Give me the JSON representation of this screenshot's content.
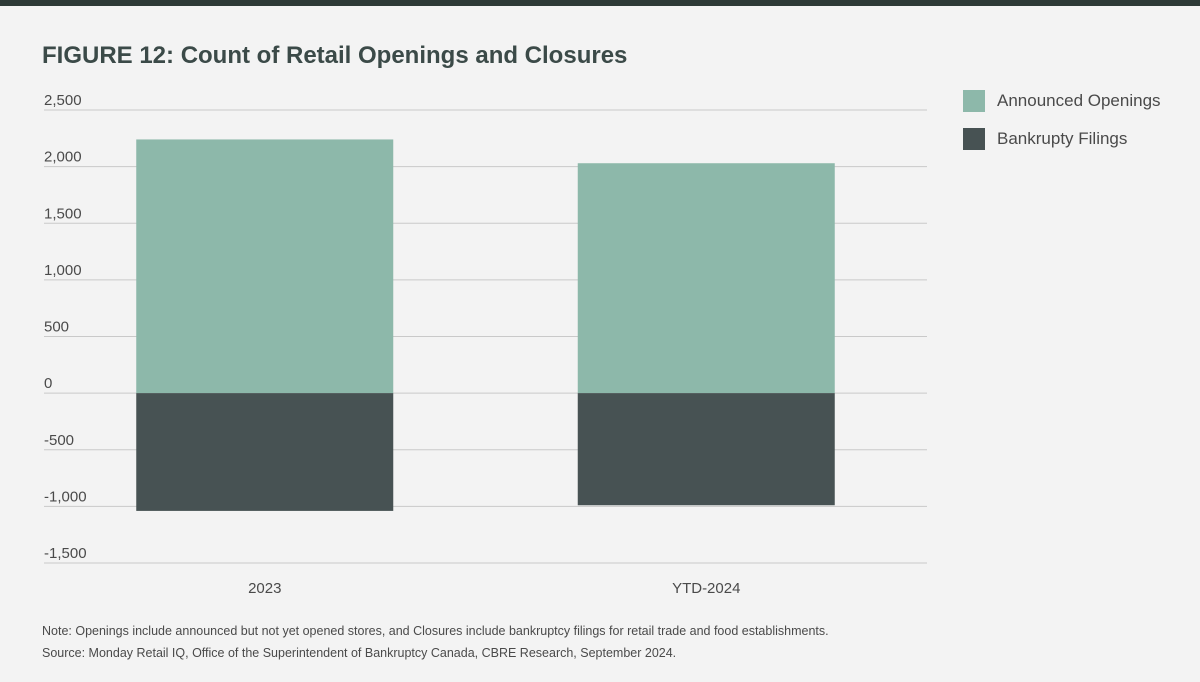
{
  "title": "FIGURE 12: Count of Retail Openings and Closures",
  "colors": {
    "openings": "#8db8aa",
    "bankruptcy": "#475253",
    "grid": "#c9c9c9",
    "tick_text": "#4a4a4a"
  },
  "legend": [
    {
      "label": "Announced Openings",
      "color": "#8db8aa"
    },
    {
      "label": "Bankrupty Filings",
      "color": "#475253"
    }
  ],
  "chart_data": {
    "type": "bar",
    "stacked": true,
    "categories": [
      "2023",
      "YTD-2024"
    ],
    "series": [
      {
        "name": "Announced Openings",
        "values": [
          2240,
          2030
        ]
      },
      {
        "name": "Bankrupty Filings",
        "values": [
          -1040,
          -990
        ]
      }
    ],
    "ylim": [
      -1500,
      2500
    ],
    "yticks": [
      2500,
      2000,
      1500,
      1000,
      500,
      0,
      -500,
      -1000,
      -1500
    ],
    "ytick_labels": [
      "2,500",
      "2,000",
      "1,500",
      "1,000",
      "500",
      "0",
      "-500",
      "-1,000",
      "-1,500"
    ],
    "grid": true,
    "legend_position": "right"
  },
  "notes": {
    "note": "Note: Openings include announced but not yet opened stores, and Closures include bankruptcy filings for retail trade and food establishments.",
    "source": "Source: Monday Retail IQ, Office of the Superintendent of Bankruptcy Canada, CBRE Research, September 2024."
  }
}
